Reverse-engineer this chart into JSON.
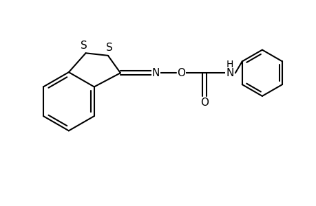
{
  "background_color": "#ffffff",
  "line_color": "#000000",
  "line_width": 1.5,
  "font_size": 11,
  "figsize": [
    4.6,
    3.0
  ],
  "dpi": 100,
  "xlim": [
    0,
    10
  ],
  "ylim": [
    0,
    6.5
  ]
}
